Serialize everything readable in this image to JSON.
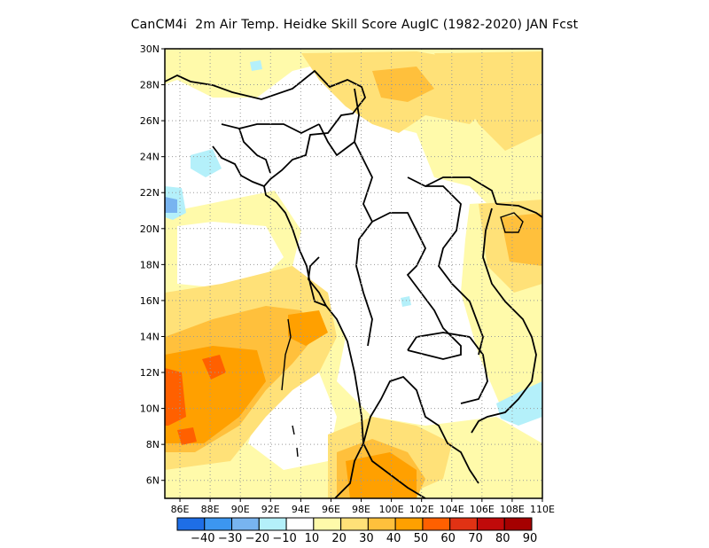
{
  "title": "CanCM4i  2m Air Temp. Heidke Skill Score AugIC (1982-2020) JAN Fcst",
  "map": {
    "lon_range": [
      85,
      110
    ],
    "lat_range": [
      5,
      30
    ],
    "lat_ticks": [
      "30N",
      "28N",
      "26N",
      "24N",
      "22N",
      "20N",
      "18N",
      "16N",
      "14N",
      "12N",
      "10N",
      "8N",
      "6N"
    ],
    "lon_ticks": [
      "86E",
      "88E",
      "90E",
      "92E",
      "94E",
      "96E",
      "98E",
      "100E",
      "102E",
      "104E",
      "106E",
      "108E",
      "110E"
    ],
    "grid": "dotted"
  },
  "colorbar": {
    "labels": [
      "-40",
      "-30",
      "-20",
      "-10",
      "10",
      "20",
      "30",
      "40",
      "50",
      "60",
      "70",
      "80",
      "90"
    ],
    "colors": [
      "#1e6ee6",
      "#3c96f0",
      "#78b4f0",
      "#b4f0fa",
      "#ffffff",
      "#fffaaa",
      "#ffe178",
      "#ffc03c",
      "#ffa000",
      "#ff6000",
      "#e13214",
      "#c00a0a",
      "#a50000"
    ]
  }
}
